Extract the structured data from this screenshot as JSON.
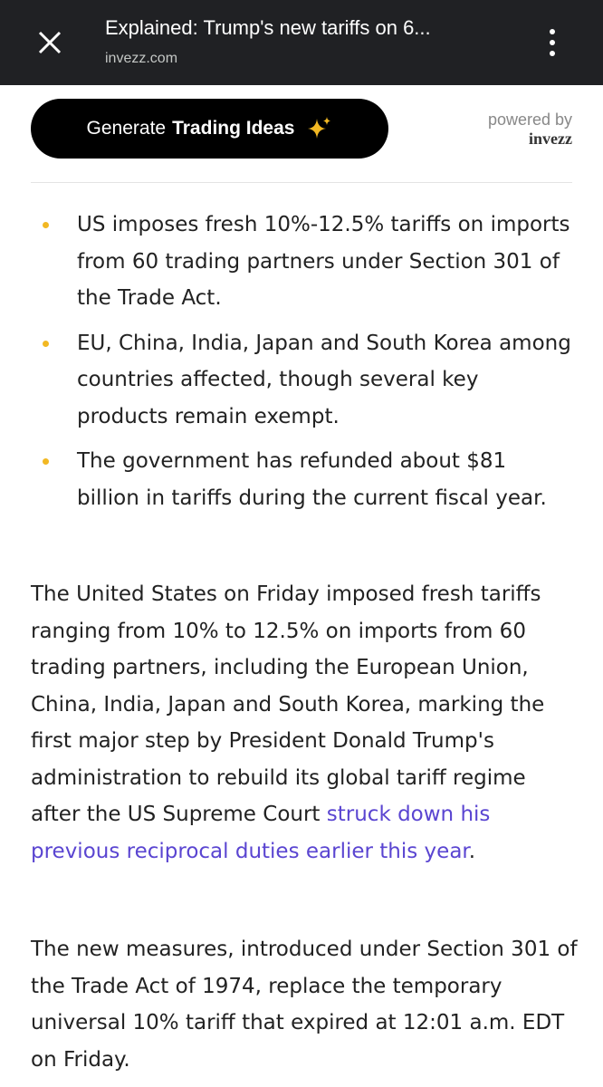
{
  "browser": {
    "title": "Explained: Trump's new tariffs on 6...",
    "url": "invezz.com"
  },
  "banner": {
    "button_regular": "Generate",
    "button_bold": "Trading Ideas",
    "powered_by": "powered by",
    "brand": "invezz"
  },
  "bullets": [
    "US imposes fresh 10%-12.5% tariffs on imports from 60 trading partners under Section 301 of the Trade Act.",
    "EU, China, India, Japan and South Korea among countries affected, though several key products remain exempt.",
    "The government has refunded about $81 billion in tariffs during the current fiscal year."
  ],
  "paragraphs": [
    {
      "before": "The United States on Friday imposed fresh tariffs ranging from 10% to 12.5% on imports from 60 trading partners, including the European Union, China, India, Japan and South Korea, marking the first major step by President Donald Trump's administration to rebuild its global tariff regime after the US Supreme Court",
      "link": "struck down his previous reciprocal duties earlier this year",
      "after": "."
    },
    {
      "before": "The new measures, introduced under Section 301 of the Trade Act of 1974, replace the temporary universal 10% tariff that expired at 12:01 a.m. EDT on Friday."
    }
  ]
}
